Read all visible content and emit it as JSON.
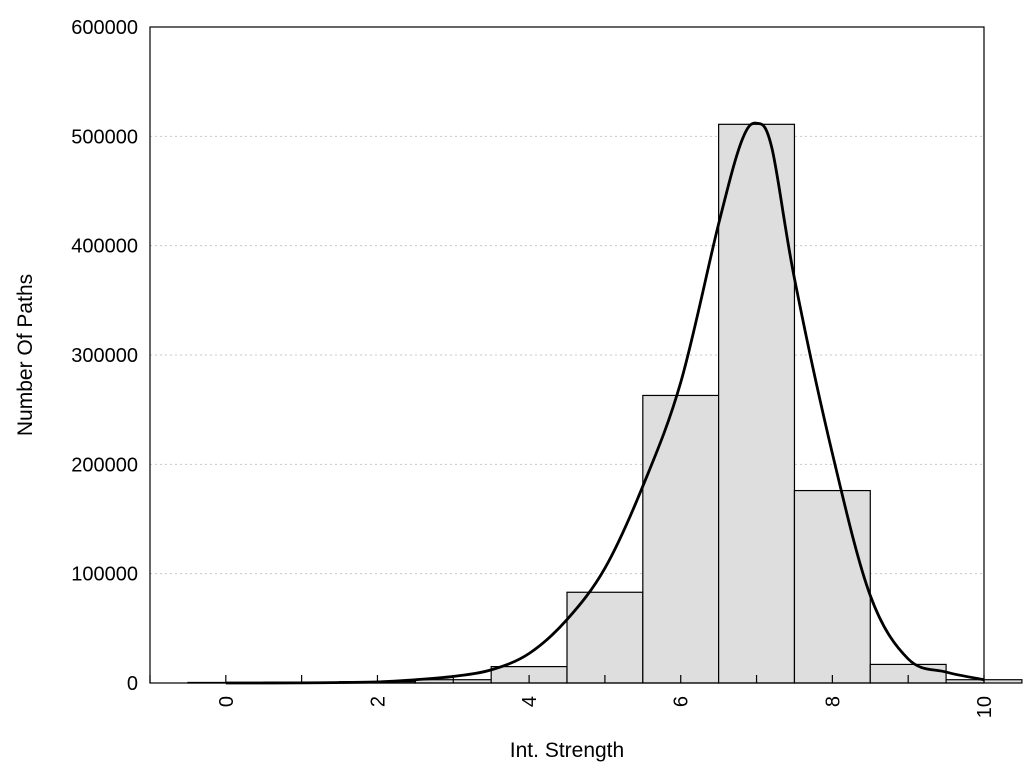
{
  "chart_data": {
    "type": "bar",
    "title": "",
    "xlabel": "Int. Strength",
    "ylabel": "Number Of Paths",
    "xlim": [
      -1,
      10
    ],
    "ylim": [
      0,
      600000
    ],
    "xticks": [
      0,
      2,
      4,
      6,
      8,
      10
    ],
    "yticks": [
      0,
      100000,
      200000,
      300000,
      400000,
      500000,
      600000
    ],
    "grid": "horizontal dotted",
    "bin_width": 1,
    "bars": {
      "centers": [
        0,
        1,
        2,
        3,
        4,
        5,
        6,
        7,
        8,
        9,
        10
      ],
      "values": [
        500,
        800,
        1200,
        3000,
        15000,
        83000,
        263000,
        511000,
        176000,
        17000,
        3000
      ]
    },
    "series": [
      {
        "type": "line",
        "x": [
          0,
          1,
          2,
          2.5,
          3,
          3.5,
          4,
          4.5,
          5,
          5.5,
          6,
          6.5,
          6.8,
          7,
          7.2,
          7.5,
          8,
          8.5,
          9,
          9.5,
          10
        ],
        "y": [
          0,
          100,
          1000,
          3000,
          6000,
          12000,
          27000,
          58000,
          105000,
          180000,
          275000,
          420000,
          495000,
          512000,
          490000,
          370000,
          210000,
          80000,
          22000,
          10000,
          3000
        ]
      }
    ],
    "colors": {
      "bar_fill": "#dedede",
      "bar_edge": "#000000",
      "curve": "#000000"
    }
  }
}
